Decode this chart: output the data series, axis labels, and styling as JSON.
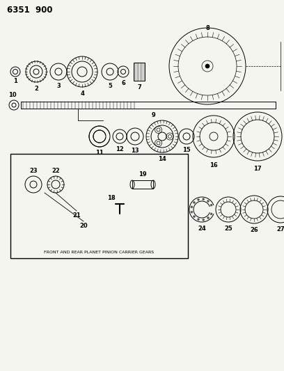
{
  "title": "6351  900",
  "bg_color": "#f5f5f0",
  "line_color": "#000000",
  "inset_label": "FRONT AND REAR PLANET PINION CARRIER GEARS",
  "figsize": [
    4.08,
    5.33
  ],
  "dpi": 100
}
